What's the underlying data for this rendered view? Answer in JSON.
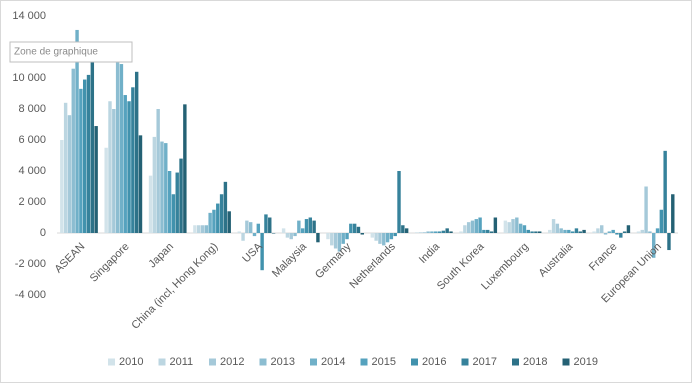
{
  "chart_data": {
    "type": "bar",
    "tooltip": "Zone de graphique",
    "categories": [
      "ASEAN",
      "Singapore",
      "Japan",
      "China (incl, Hong Kong)",
      "USA",
      "Malaysia",
      "Germany",
      "Netherlands",
      "India",
      "South Korea",
      "Luxembourg",
      "Australia",
      "France",
      "European Union"
    ],
    "series": [
      {
        "name": "2010",
        "color": "#d2e3ea",
        "values": [
          6000,
          5500,
          3700,
          500,
          100,
          300,
          -400,
          -300,
          50,
          100,
          800,
          200,
          100,
          100
        ]
      },
      {
        "name": "2011",
        "color": "#bcd6e1",
        "values": [
          8400,
          8500,
          6200,
          500,
          -500,
          -300,
          -800,
          -500,
          50,
          500,
          700,
          900,
          300,
          200
        ]
      },
      {
        "name": "2012",
        "color": "#a5c9d9",
        "values": [
          7600,
          8000,
          8000,
          500,
          800,
          -400,
          -1000,
          -700,
          50,
          700,
          900,
          600,
          500,
          3000
        ]
      },
      {
        "name": "2013",
        "color": "#8cbdd1",
        "values": [
          10600,
          12000,
          5900,
          500,
          700,
          -200,
          -1200,
          -800,
          100,
          800,
          1000,
          300,
          -100,
          100
        ]
      },
      {
        "name": "2014",
        "color": "#70b0c8",
        "values": [
          13100,
          10900,
          5800,
          1300,
          -200,
          800,
          -700,
          -600,
          100,
          900,
          600,
          200,
          100,
          -1600
        ]
      },
      {
        "name": "2015",
        "color": "#55a2be",
        "values": [
          9300,
          8900,
          4000,
          1500,
          600,
          300,
          -400,
          -400,
          100,
          1000,
          500,
          200,
          200,
          300
        ]
      },
      {
        "name": "2016",
        "color": "#4192ad",
        "values": [
          9900,
          8500,
          2500,
          1900,
          -2400,
          900,
          600,
          -200,
          100,
          200,
          200,
          100,
          -100,
          1500
        ]
      },
      {
        "name": "2017",
        "color": "#36829b",
        "values": [
          10200,
          9400,
          3900,
          2500,
          1200,
          1000,
          600,
          4000,
          150,
          200,
          100,
          300,
          -300,
          5300
        ]
      },
      {
        "name": "2018",
        "color": "#2d7288",
        "values": [
          11600,
          10400,
          4800,
          3300,
          1000,
          800,
          400,
          500,
          300,
          100,
          100,
          100,
          100,
          -1100
        ]
      },
      {
        "name": "2019",
        "color": "#246174",
        "values": [
          6900,
          6300,
          8300,
          1400,
          0,
          -600,
          -100,
          300,
          100,
          1000,
          100,
          200,
          500,
          2500
        ]
      }
    ],
    "ylim": [
      -4000,
      14000
    ],
    "yticks": [
      {
        "value": -4000,
        "label": "-4 000"
      },
      {
        "value": -2000,
        "label": "-2 000"
      },
      0,
      {
        "value": 2000,
        "label": "2 000"
      },
      {
        "value": 4000,
        "label": "4 000"
      },
      {
        "value": 6000,
        "label": "6 000"
      },
      {
        "value": 8000,
        "label": "8 000"
      },
      {
        "value": 10000,
        "label": "10 000"
      },
      {
        "value": 12000,
        "label": "12 000"
      },
      {
        "value": 14000,
        "label": "14 000"
      }
    ],
    "grid": false
  }
}
